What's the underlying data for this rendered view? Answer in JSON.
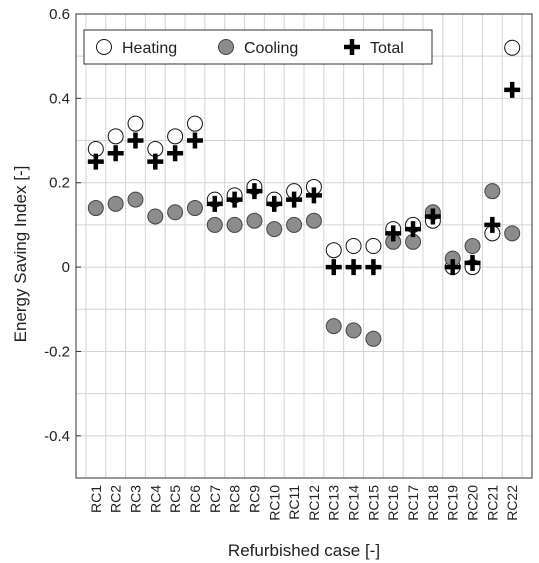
{
  "chart_data": {
    "type": "scatter",
    "title": "",
    "xlabel": "Refurbished case [-]",
    "ylabel": "Energy Saving Index [-]",
    "ylim": [
      -0.5,
      0.6
    ],
    "yticks": [
      -0.4,
      -0.2,
      0,
      0.2,
      0.4,
      0.6
    ],
    "ytick_labels": [
      "-0.4",
      "-0.2",
      "0",
      "0.2",
      "0.4",
      "0.6"
    ],
    "grid": true,
    "legend_position": "top-left",
    "categories": [
      "RC1",
      "RC2",
      "RC3",
      "RC4",
      "RC5",
      "RC6",
      "RC7",
      "RC8",
      "RC9",
      "RC10",
      "RC11",
      "RC12",
      "RC13",
      "RC14",
      "RC15",
      "RC16",
      "RC17",
      "RC18",
      "RC19",
      "RC20",
      "RC21",
      "RC22"
    ],
    "series": [
      {
        "name": "Heating",
        "marker": "open-circle",
        "values": [
          0.28,
          0.31,
          0.34,
          0.28,
          0.31,
          0.34,
          0.16,
          0.17,
          0.19,
          0.16,
          0.18,
          0.19,
          0.04,
          0.05,
          0.05,
          0.09,
          0.1,
          0.11,
          0.0,
          0.0,
          0.08,
          0.52
        ]
      },
      {
        "name": "Cooling",
        "marker": "filled-circle",
        "values": [
          0.14,
          0.15,
          0.16,
          0.12,
          0.13,
          0.14,
          0.1,
          0.1,
          0.11,
          0.09,
          0.1,
          0.11,
          -0.14,
          -0.15,
          -0.17,
          0.06,
          0.06,
          0.13,
          0.02,
          0.05,
          0.18,
          0.08
        ]
      },
      {
        "name": "Total",
        "marker": "plus",
        "values": [
          0.25,
          0.27,
          0.3,
          0.25,
          0.27,
          0.3,
          0.15,
          0.16,
          0.18,
          0.15,
          0.16,
          0.17,
          0.0,
          0.0,
          0.0,
          0.08,
          0.09,
          0.12,
          0.0,
          0.01,
          0.1,
          0.42
        ]
      }
    ],
    "colors": {
      "heating_fill": "#ffffff",
      "cooling_fill": "#8c8c8c",
      "total": "#000000",
      "grid": "#d4d4d4",
      "axis": "#333333"
    }
  }
}
